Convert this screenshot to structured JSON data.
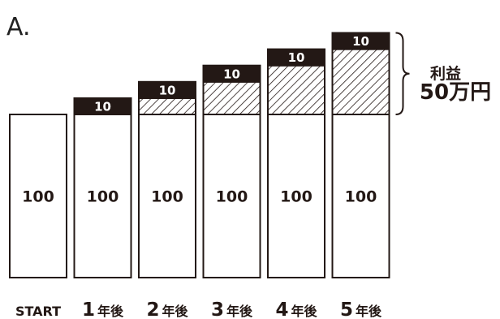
{
  "panel_label": "A.",
  "chart_data": {
    "type": "bar",
    "categories": [
      {
        "number": "",
        "text": "START"
      },
      {
        "number": "1",
        "text": "年後"
      },
      {
        "number": "2",
        "text": "年後"
      },
      {
        "number": "3",
        "text": "年後"
      },
      {
        "number": "4",
        "text": "年後"
      },
      {
        "number": "5",
        "text": "年後"
      }
    ],
    "base_value": 100,
    "base_labels": [
      "100",
      "100",
      "100",
      "100",
      "100",
      "100"
    ],
    "top_value": 10,
    "top_labels": [
      "",
      "10",
      "10",
      "10",
      "10",
      "10"
    ],
    "has_top": [
      false,
      true,
      true,
      true,
      true,
      true
    ],
    "accumulated_profit": [
      0,
      0,
      10,
      20,
      30,
      40
    ],
    "stack_order": [
      "base",
      "accumulated_profit",
      "top"
    ],
    "profit_annotation": {
      "title": "利益",
      "value": "50万円"
    },
    "colors": {
      "bar_fill": "#ffffff",
      "outline": "#231815",
      "top": "#231815",
      "hatch": "#231815"
    }
  }
}
